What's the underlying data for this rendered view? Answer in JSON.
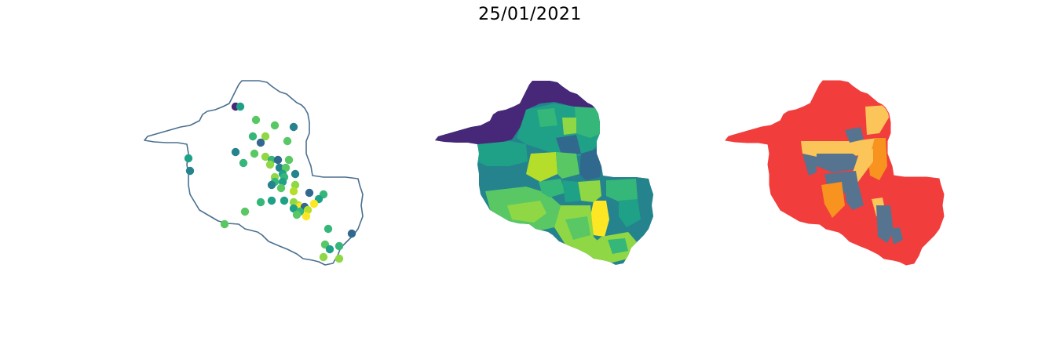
{
  "figure": {
    "title": "25/01/2021"
  },
  "colors": {
    "outline": "#4a6f8f",
    "viridis": [
      "#472778",
      "#31688e",
      "#25838e",
      "#1fa187",
      "#35b779",
      "#59c864",
      "#8fd744",
      "#b5de2b",
      "#fde725"
    ],
    "risk": {
      "red": "#f23d3d",
      "orange": "#f7931e",
      "yellow": "#fbc55a",
      "slate": "#56738f"
    }
  },
  "map_panels": [
    {
      "name": "municipality-points",
      "kind": "points"
    },
    {
      "name": "choropleth-viridis",
      "kind": "choropleth"
    },
    {
      "name": "choropleth-risk",
      "kind": "choropleth"
    }
  ]
}
